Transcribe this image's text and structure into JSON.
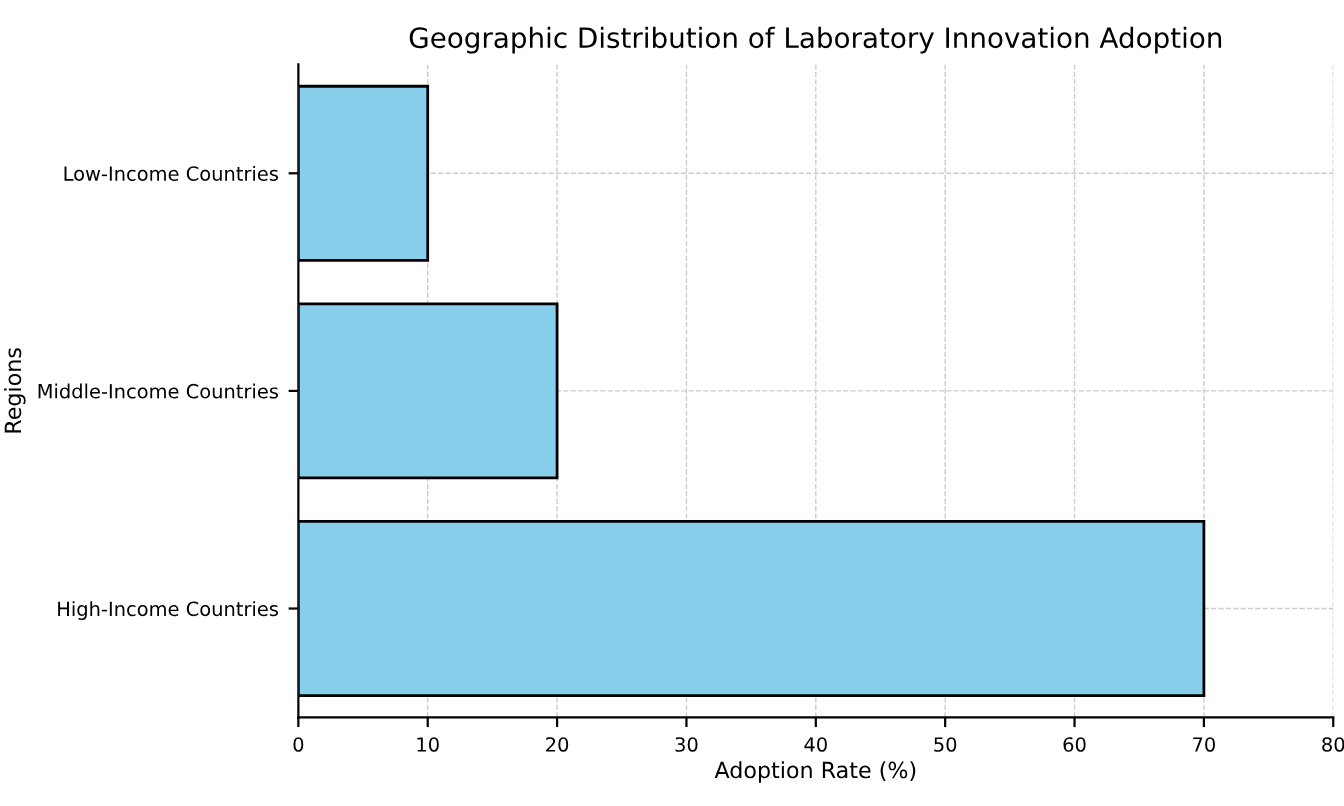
{
  "chart_data": {
    "type": "bar",
    "orientation": "horizontal",
    "title": "Geographic Distribution of Laboratory Innovation Adoption",
    "xlabel": "Adoption Rate (%)",
    "ylabel": "Regions",
    "categories": [
      "Low-Income Countries",
      "Middle-Income Countries",
      "High-Income Countries"
    ],
    "values": [
      10,
      20,
      70
    ],
    "color": "#87ceeb",
    "xlim": [
      0,
      80
    ],
    "xticks": [
      0,
      10,
      20,
      30,
      40,
      50,
      60,
      70,
      80
    ],
    "grid": true
  }
}
